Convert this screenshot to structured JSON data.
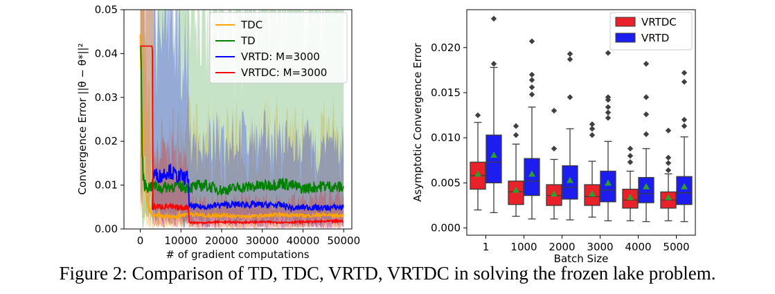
{
  "caption": "Figure 2: Comparison of TD, TDC, VRTD, VRTDC in solving the frozen lake problem.",
  "colors": {
    "TDC": "#ffa500",
    "TD": "#008000",
    "VRTD": "#0000ff",
    "VRTDC": "#ff0000",
    "box_red": "#e8212b",
    "box_blue": "#1d1df0",
    "mean_marker": "#2ca02c",
    "outlier": "#404040"
  },
  "chart_data": [
    {
      "type": "line",
      "title": "",
      "xlabel": "# of gradient computations",
      "ylabel": "Convergence Error ||θ − θ*||²",
      "xlim": [
        -4000,
        52000
      ],
      "ylim": [
        0,
        0.05
      ],
      "xticks": [
        0,
        10000,
        20000,
        30000,
        40000,
        50000
      ],
      "xtick_labels": [
        "0",
        "10000",
        "20000",
        "30000",
        "40000",
        "50000"
      ],
      "yticks": [
        0,
        0.01,
        0.02,
        0.03,
        0.04,
        0.05
      ],
      "ytick_labels": [
        "0.00",
        "0.01",
        "0.02",
        "0.03",
        "0.04",
        "0.05"
      ],
      "legend_position": "top-right",
      "series": [
        {
          "name": "TDC",
          "color_key": "TDC",
          "x": [
            0,
            1000,
            2000,
            3000,
            5000,
            8000,
            12000,
            16000,
            20000,
            25000,
            30000,
            35000,
            40000,
            45000,
            50000
          ],
          "y": [
            0.04,
            0.01,
            0.005,
            0.003,
            0.003,
            0.0028,
            0.0035,
            0.003,
            0.0032,
            0.0028,
            0.003,
            0.0033,
            0.003,
            0.0032,
            0.003
          ]
        },
        {
          "name": "TD",
          "color_key": "TD",
          "x": [
            0,
            200,
            500,
            1000,
            2000,
            3000,
            5000,
            8000,
            12000,
            16000,
            20000,
            25000,
            30000,
            35000,
            40000,
            45000,
            50000
          ],
          "y": [
            0.0415,
            0.0415,
            0.015,
            0.01,
            0.0095,
            0.01,
            0.0093,
            0.0098,
            0.0095,
            0.01,
            0.0088,
            0.0095,
            0.0098,
            0.0105,
            0.0092,
            0.0098,
            0.0095
          ]
        },
        {
          "name": "VRTD: M=3000",
          "color_key": "VRTD",
          "x": [
            3000,
            3100,
            5000,
            7000,
            9000,
            11000,
            11900,
            12000,
            15000,
            20000,
            25000,
            30000,
            35000,
            38000,
            40000,
            45000,
            50000
          ],
          "y": [
            0.0045,
            0.0125,
            0.012,
            0.0135,
            0.012,
            0.0118,
            0.0118,
            0.0052,
            0.005,
            0.0055,
            0.0056,
            0.0055,
            0.0054,
            0.0046,
            0.005,
            0.0048,
            0.005
          ]
        },
        {
          "name": "VRTDC: M=3000",
          "color_key": "VRTDC",
          "x": [
            0,
            3000,
            3100,
            6000,
            9000,
            11900,
            12000,
            15000,
            20000,
            25000,
            30000,
            35000,
            40000,
            45000,
            50000
          ],
          "y": [
            0.0417,
            0.0417,
            0.005,
            0.0052,
            0.0048,
            0.005,
            0.0015,
            0.0014,
            0.0016,
            0.0015,
            0.0016,
            0.0015,
            0.0016,
            0.0017,
            0.0018
          ]
        }
      ]
    },
    {
      "type": "box",
      "title": "",
      "xlabel": "Batch Size",
      "ylabel": "Asymptotic Convergence Error",
      "categories": [
        "1",
        "1000",
        "2000",
        "3000",
        "4000",
        "5000"
      ],
      "ylim": [
        -0.0008,
        0.0242
      ],
      "yticks": [
        0,
        0.005,
        0.01,
        0.015,
        0.02
      ],
      "ytick_labels": [
        "0.000",
        "0.005",
        "0.010",
        "0.015",
        "0.020"
      ],
      "legend_position": "top-right",
      "series": [
        {
          "name": "VRTDC",
          "color_key": "box_red",
          "boxes": [
            {
              "whisker_low": 0.002,
              "q1": 0.0043,
              "median": 0.0058,
              "q3": 0.0073,
              "whisker_high": 0.0117,
              "mean": 0.006,
              "outliers": [
                0.0125
              ]
            },
            {
              "whisker_low": 0.0013,
              "q1": 0.0026,
              "median": 0.004,
              "q3": 0.0052,
              "whisker_high": 0.0093,
              "mean": 0.0042,
              "outliers": [
                0.0103,
                0.0113
              ]
            },
            {
              "whisker_low": 0.001,
              "q1": 0.0025,
              "median": 0.0036,
              "q3": 0.0048,
              "whisker_high": 0.0076,
              "mean": 0.0038,
              "outliers": [
                0.0088,
                0.013
              ]
            },
            {
              "whisker_low": 0.0012,
              "q1": 0.0025,
              "median": 0.0035,
              "q3": 0.0048,
              "whisker_high": 0.0074,
              "mean": 0.0038,
              "outliers": [
                0.0103,
                0.011,
                0.0115
              ]
            },
            {
              "whisker_low": 0.0008,
              "q1": 0.0022,
              "median": 0.0031,
              "q3": 0.0043,
              "whisker_high": 0.0063,
              "mean": 0.0034,
              "outliers": [
                0.0073,
                0.008,
                0.0088
              ]
            },
            {
              "whisker_low": 0.0008,
              "q1": 0.0022,
              "median": 0.0031,
              "q3": 0.004,
              "whisker_high": 0.006,
              "mean": 0.0034,
              "outliers": [
                0.0064,
                0.0072,
                0.0078,
                0.0108
              ]
            }
          ]
        },
        {
          "name": "VRTD",
          "color_key": "box_blue",
          "boxes": [
            {
              "whisker_low": 0.0017,
              "q1": 0.005,
              "median": 0.0073,
              "q3": 0.0103,
              "whisker_high": 0.0178,
              "mean": 0.0081,
              "outliers": [
                0.0182,
                0.0232
              ]
            },
            {
              "whisker_low": 0.001,
              "q1": 0.0036,
              "median": 0.0052,
              "q3": 0.0077,
              "whisker_high": 0.0134,
              "mean": 0.006,
              "outliers": [
                0.0148,
                0.0156,
                0.0164,
                0.017,
                0.0207
              ]
            },
            {
              "whisker_low": 0.0009,
              "q1": 0.0032,
              "median": 0.0045,
              "q3": 0.0069,
              "whisker_high": 0.011,
              "mean": 0.0053,
              "outliers": [
                0.0145,
                0.0187,
                0.0193
              ]
            },
            {
              "whisker_low": 0.0008,
              "q1": 0.0029,
              "median": 0.0042,
              "q3": 0.0063,
              "whisker_high": 0.0096,
              "mean": 0.005,
              "outliers": [
                0.0122,
                0.0128,
                0.0134,
                0.0142,
                0.0145,
                0.0194
              ]
            },
            {
              "whisker_low": 0.0007,
              "q1": 0.0028,
              "median": 0.0038,
              "q3": 0.0056,
              "whisker_high": 0.0088,
              "mean": 0.0046,
              "outliers": [
                0.0104,
                0.0126,
                0.0145,
                0.0182
              ]
            },
            {
              "whisker_low": 0.0007,
              "q1": 0.0026,
              "median": 0.0039,
              "q3": 0.0057,
              "whisker_high": 0.0101,
              "mean": 0.0046,
              "outliers": [
                0.0113,
                0.012,
                0.0162,
                0.0172
              ]
            }
          ]
        }
      ]
    }
  ]
}
